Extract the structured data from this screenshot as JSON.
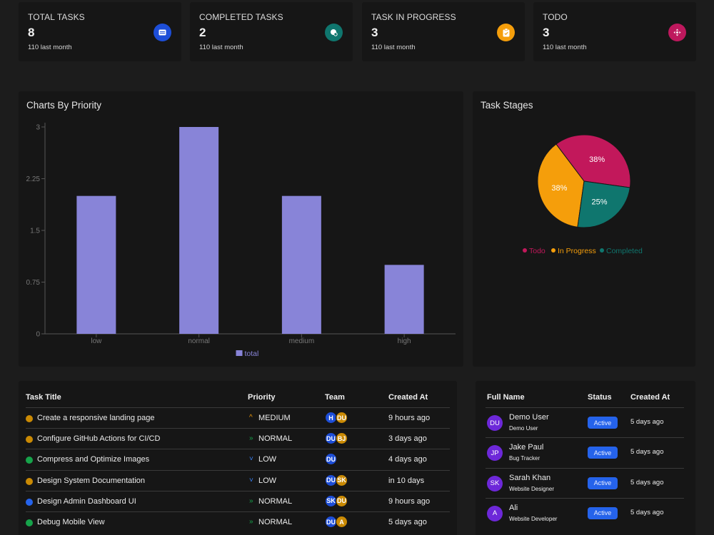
{
  "stats": [
    {
      "title": "TOTAL TASKS",
      "value": "8",
      "sub": "110 last month",
      "icon": "note-icon",
      "color": "#1d4ed8"
    },
    {
      "title": "COMPLETED TASKS",
      "value": "2",
      "sub": "110 last month",
      "icon": "admin-icon",
      "color": "#0f766e"
    },
    {
      "title": "TASK IN PROGRESS",
      "value": "3",
      "sub": "110 last month",
      "icon": "clipboard-icon",
      "color": "#f59e0b"
    },
    {
      "title": "TODO",
      "value": "3",
      "sub": "110 last month",
      "icon": "arrows-icon",
      "color": "#be185d"
    }
  ],
  "priority_chart": {
    "title": "Charts By Priority",
    "legend": "total",
    "color": "#8884d8"
  },
  "stages_chart": {
    "title": "Task Stages",
    "legend": [
      {
        "label": "Todo",
        "color": "#c2185b"
      },
      {
        "label": "In Progress",
        "color": "#f59e0b"
      },
      {
        "label": "Completed",
        "color": "#0f766e"
      }
    ]
  },
  "chart_data": [
    {
      "type": "bar",
      "title": "Charts By Priority",
      "categories": [
        "low",
        "normal",
        "medium",
        "high"
      ],
      "series": [
        {
          "name": "total",
          "values": [
            2,
            3,
            2,
            1
          ]
        }
      ],
      "yticks": [
        "0",
        "0.75",
        "1.5",
        "2.25",
        "3"
      ],
      "ylim": [
        0,
        3
      ],
      "legend": "bottom-center",
      "grid": false
    },
    {
      "type": "pie",
      "title": "Task Stages",
      "categories": [
        "Todo",
        "In Progress",
        "Completed"
      ],
      "values": [
        3,
        3,
        2
      ],
      "labels": [
        "38%",
        "38%",
        "25%"
      ],
      "legend": "bottom-center"
    }
  ],
  "task_table": {
    "headers": [
      "Task Title",
      "Priority",
      "Team",
      "Created At"
    ],
    "rows": [
      {
        "title": "Create a responsive landing page",
        "dot": "#ca8a04",
        "priority": "MEDIUM",
        "pri_icon": "^",
        "pri_color": "#f59e0b",
        "team": [
          {
            "i": "H",
            "c": "#1d4ed8"
          },
          {
            "i": "DU",
            "c": "#ca8a04"
          }
        ],
        "created": "9 hours ago"
      },
      {
        "title": "Configure GitHub Actions for CI/CD",
        "dot": "#ca8a04",
        "priority": "NORMAL",
        "pri_icon": "»",
        "pri_color": "#16a34a",
        "team": [
          {
            "i": "DU",
            "c": "#1d4ed8"
          },
          {
            "i": "BJ",
            "c": "#ca8a04"
          }
        ],
        "created": "3 days ago"
      },
      {
        "title": "Compress and Optimize Images",
        "dot": "#16a34a",
        "priority": "LOW",
        "pri_icon": "˅",
        "pri_color": "#3b82f6",
        "team": [
          {
            "i": "DU",
            "c": "#1d4ed8"
          }
        ],
        "created": "4 days ago"
      },
      {
        "title": "Design System Documentation",
        "dot": "#ca8a04",
        "priority": "LOW",
        "pri_icon": "˅",
        "pri_color": "#3b82f6",
        "team": [
          {
            "i": "DU",
            "c": "#1d4ed8"
          },
          {
            "i": "SK",
            "c": "#ca8a04"
          }
        ],
        "created": "in 10 days"
      },
      {
        "title": "Design Admin Dashboard UI",
        "dot": "#2563eb",
        "priority": "NORMAL",
        "pri_icon": "»",
        "pri_color": "#16a34a",
        "team": [
          {
            "i": "SK",
            "c": "#1d4ed8"
          },
          {
            "i": "DU",
            "c": "#ca8a04"
          }
        ],
        "created": "9 hours ago"
      },
      {
        "title": "Debug Mobile View",
        "dot": "#16a34a",
        "priority": "NORMAL",
        "pri_icon": "»",
        "pri_color": "#16a34a",
        "team": [
          {
            "i": "DU",
            "c": "#1d4ed8"
          },
          {
            "i": "A",
            "c": "#ca8a04"
          }
        ],
        "created": "5 days ago"
      }
    ]
  },
  "user_table": {
    "headers": [
      "Full Name",
      "Status",
      "Created At"
    ],
    "rows": [
      {
        "initials": "DU",
        "name": "Demo User",
        "role": "Demo User",
        "status": "Active",
        "created": "5 days ago"
      },
      {
        "initials": "JP",
        "name": "Jake Paul",
        "role": "Bug Tracker",
        "status": "Active",
        "created": "5 days ago"
      },
      {
        "initials": "SK",
        "name": "Sarah Khan",
        "role": "Website Designer",
        "status": "Active",
        "created": "5 days ago"
      },
      {
        "initials": "A",
        "name": "Ali",
        "role": "Website Developer",
        "status": "Active",
        "created": "5 days ago"
      }
    ]
  }
}
